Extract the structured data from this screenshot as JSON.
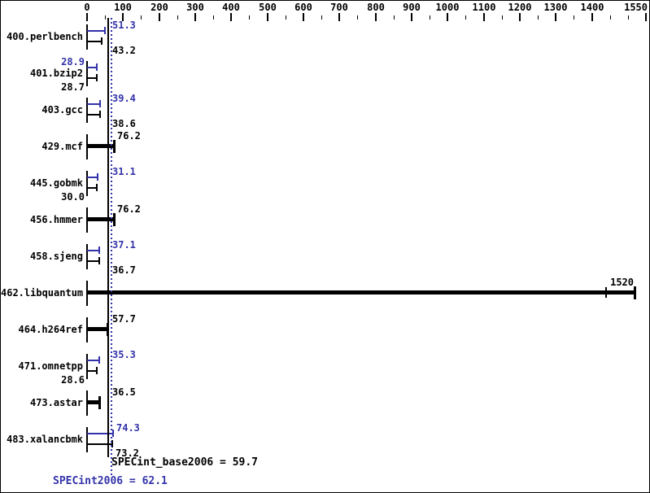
{
  "page": {
    "background": "#ffffff",
    "border_color": "#000000"
  },
  "chart_data": {
    "type": "bar",
    "orientation": "horizontal",
    "title": "",
    "xlabel": "",
    "ylabel": "",
    "grid": false,
    "axis": {
      "min": 0,
      "max": 1550,
      "minor_tick_step": 50,
      "labeled_ticks": [
        0,
        100,
        200,
        300,
        400,
        500,
        600,
        700,
        800,
        900,
        1000,
        1100,
        1200,
        1300,
        1400,
        1550
      ]
    },
    "colors": {
      "peak_blue": "#3333aa",
      "base_black": "#000000"
    },
    "benchmarks": [
      {
        "name": "400.perlbench",
        "style": "dual",
        "peak": 51.3,
        "peak_display": "51.3",
        "peak_label_side": "right",
        "base": 43.2,
        "base_display": "43.2",
        "base_label_side": "right"
      },
      {
        "name": "401.bzip2",
        "style": "dual",
        "peak": 28.9,
        "peak_display": "28.9",
        "peak_label_side": "left",
        "base": 28.7,
        "base_display": "28.7",
        "base_label_side": "left"
      },
      {
        "name": "403.gcc",
        "style": "dual",
        "peak": 39.4,
        "peak_display": "39.4",
        "peak_label_side": "right",
        "base": 38.6,
        "base_display": "38.6",
        "base_label_side": "right"
      },
      {
        "name": "429.mcf",
        "style": "single",
        "value": 76.2,
        "value_display": "76.2",
        "label_side": "right"
      },
      {
        "name": "445.gobmk",
        "style": "dual",
        "peak": 31.1,
        "peak_display": "31.1",
        "peak_label_side": "right",
        "base": 30.0,
        "base_display": "30.0",
        "base_label_side": "left"
      },
      {
        "name": "456.hmmer",
        "style": "single",
        "value": 76.2,
        "value_display": "76.2",
        "label_side": "right"
      },
      {
        "name": "458.sjeng",
        "style": "dual",
        "peak": 37.1,
        "peak_display": "37.1",
        "peak_label_side": "right",
        "base": 36.7,
        "base_display": "36.7",
        "base_label_side": "right"
      },
      {
        "name": "462.libquantum",
        "style": "single",
        "value": 1520,
        "value_display": "1520",
        "label_side": "end",
        "marker": 1440
      },
      {
        "name": "464.h264ref",
        "style": "single",
        "value": 57.7,
        "value_display": "57.7",
        "label_side": "right"
      },
      {
        "name": "471.omnetpp",
        "style": "dual",
        "peak": 35.3,
        "peak_display": "35.3",
        "peak_label_side": "right",
        "base": 28.6,
        "base_display": "28.6",
        "base_label_side": "left"
      },
      {
        "name": "473.astar",
        "style": "single",
        "value": 36.5,
        "value_display": "36.5",
        "label_side": "right"
      },
      {
        "name": "483.xalancbmk",
        "style": "dual",
        "peak": 74.3,
        "peak_display": "74.3",
        "peak_label_side": "right",
        "base": 73.2,
        "base_display": "73.2",
        "base_label_side": "right"
      }
    ],
    "reference_lines": [
      {
        "name": "SPECint_base2006",
        "value": 59.7,
        "display": "59.7",
        "label": "SPECint_base2006 = 59.7",
        "color": "#000000",
        "line_style": "solid"
      },
      {
        "name": "SPECint2006",
        "value": 62.1,
        "display": "62.1",
        "label": "SPECint2006 = 62.1",
        "color": "#3333aa",
        "line_style": "dotted"
      }
    ]
  }
}
